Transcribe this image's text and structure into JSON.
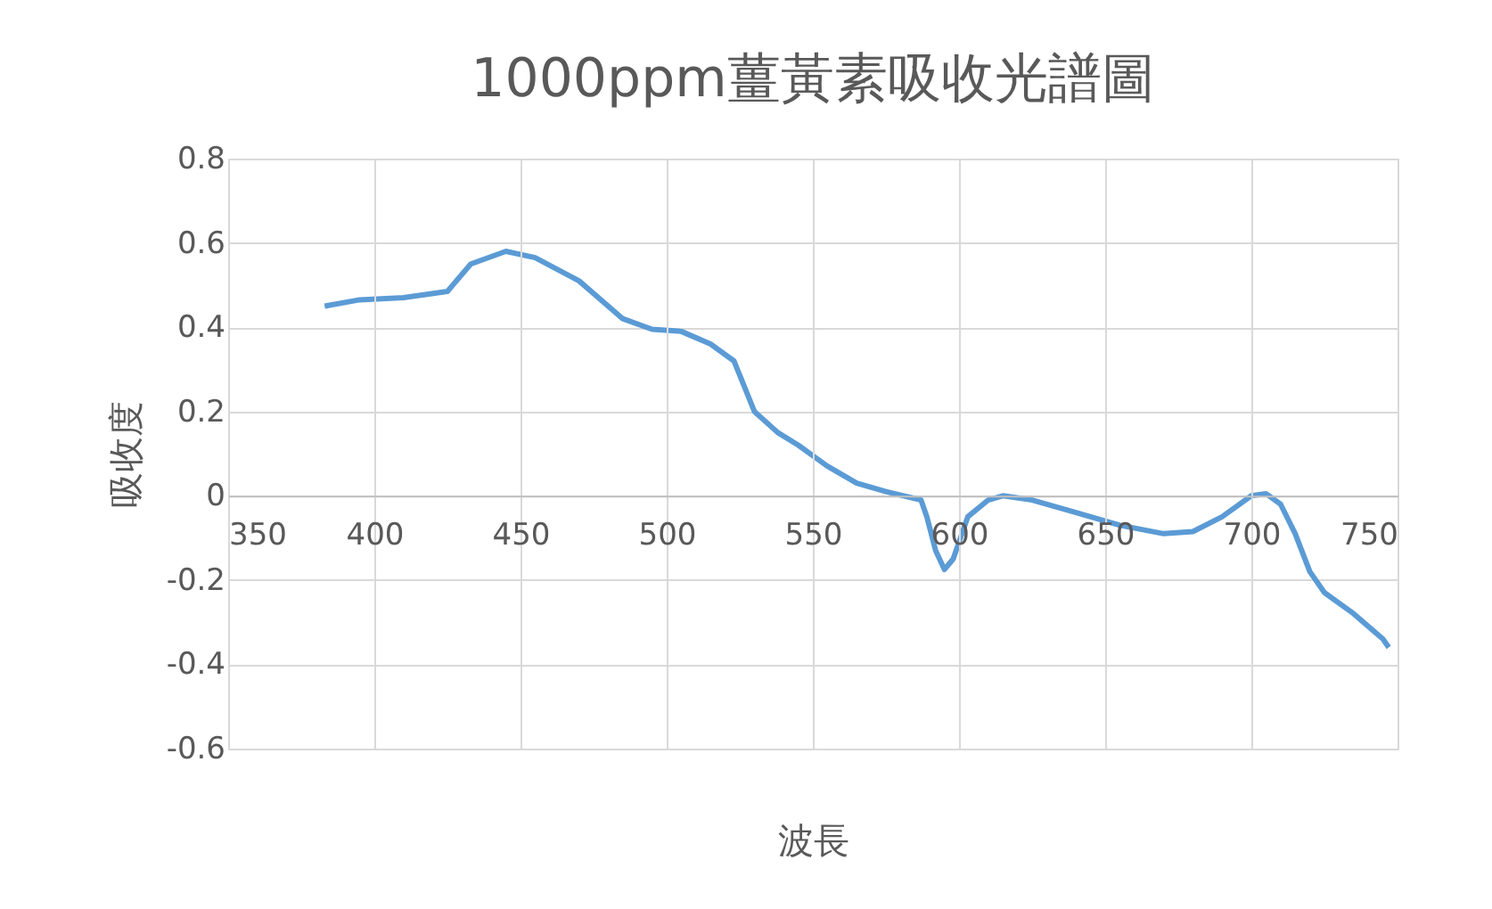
{
  "chart_data": {
    "type": "line",
    "title": "1000ppm薑黃素吸收光譜圖",
    "xlabel": "波長",
    "ylabel": "吸收度",
    "xlim": [
      350,
      750
    ],
    "xticks": [
      350,
      400,
      450,
      500,
      550,
      600,
      650,
      700,
      750
    ],
    "ylim": [
      -0.6,
      0.8
    ],
    "yticks": [
      -0.6,
      -0.4,
      -0.2,
      0,
      0.2,
      0.4,
      0.6,
      0.8
    ],
    "grid": true,
    "legend": false,
    "marker": "none",
    "line_style": "solid",
    "series": [
      {
        "color": "#5b9bd5",
        "x": [
          383,
          395,
          410,
          425,
          433,
          445,
          455,
          470,
          485,
          495,
          505,
          515,
          523,
          530,
          538,
          545,
          555,
          565,
          575,
          587,
          589,
          592,
          595,
          598,
          603,
          610,
          615,
          625,
          640,
          655,
          670,
          680,
          690,
          700,
          705,
          710,
          715,
          720,
          725,
          735,
          745,
          747
        ],
        "values": [
          0.45,
          0.465,
          0.47,
          0.485,
          0.55,
          0.58,
          0.565,
          0.51,
          0.42,
          0.395,
          0.39,
          0.36,
          0.32,
          0.2,
          0.15,
          0.12,
          0.07,
          0.03,
          0.01,
          -0.01,
          -0.05,
          -0.13,
          -0.175,
          -0.15,
          -0.05,
          -0.01,
          0,
          -0.01,
          -0.04,
          -0.07,
          -0.09,
          -0.085,
          -0.05,
          0,
          0.005,
          -0.02,
          -0.09,
          -0.18,
          -0.23,
          -0.28,
          -0.34,
          -0.36
        ]
      }
    ]
  }
}
